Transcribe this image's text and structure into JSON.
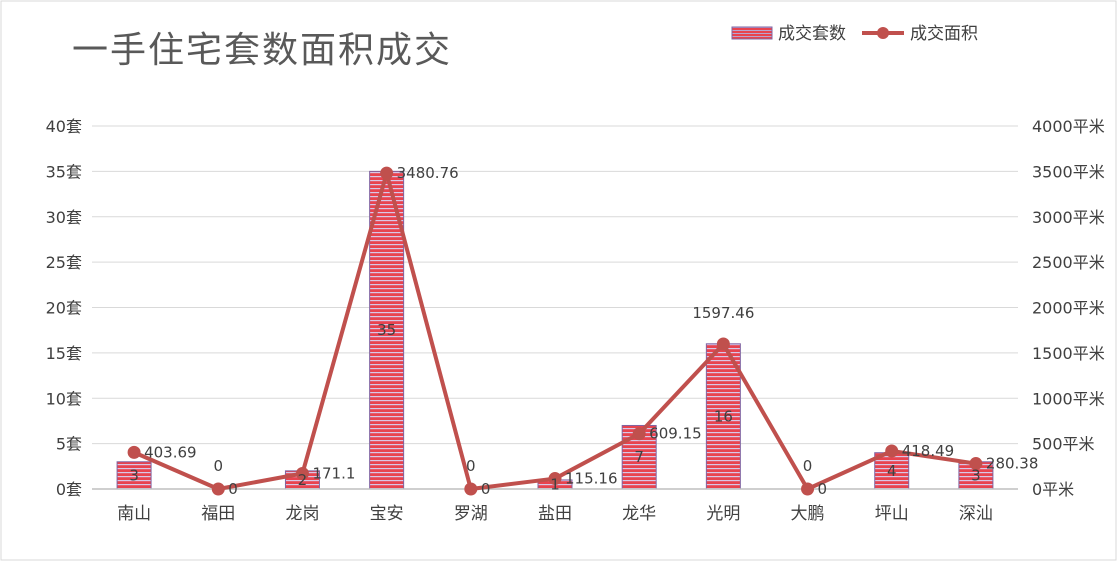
{
  "chart_data": {
    "type": "bar",
    "title": "一手住宅套数面积成交",
    "categories": [
      "南山",
      "福田",
      "龙岗",
      "宝安",
      "罗湖",
      "盐田",
      "龙华",
      "光明",
      "大鹏",
      "坪山",
      "深汕"
    ],
    "series": [
      {
        "name": "成交套数",
        "type": "bar",
        "axis": "left",
        "values": [
          3,
          0,
          2,
          35,
          0,
          1,
          7,
          16,
          0,
          4,
          3
        ],
        "labels": [
          "3",
          "0",
          "2",
          "35",
          "0",
          "1",
          "7",
          "16",
          "0",
          "4",
          "3"
        ]
      },
      {
        "name": "成交面积",
        "type": "line",
        "axis": "right",
        "values": [
          403.69,
          0,
          171.1,
          3480.76,
          0,
          115.16,
          609.15,
          1597.46,
          0,
          418.49,
          280.38
        ],
        "labels": [
          "403.69",
          "0",
          "171.1",
          "3480.76",
          "0",
          "115.16",
          "609.15",
          "1597.46",
          "0",
          "418.49",
          "280.38"
        ]
      }
    ],
    "y_left": {
      "ylim": [
        0,
        40
      ],
      "ticks": [
        0,
        5,
        10,
        15,
        20,
        25,
        30,
        35,
        40
      ],
      "tick_labels": [
        "0套",
        "5套",
        "10套",
        "15套",
        "20套",
        "25套",
        "30套",
        "35套",
        "40套"
      ]
    },
    "y_right": {
      "ylim": [
        0,
        4000
      ],
      "ticks": [
        0,
        500,
        1000,
        1500,
        2000,
        2500,
        3000,
        3500,
        4000
      ],
      "tick_labels": [
        "0平米",
        "500平米",
        "1000平米",
        "1500平米",
        "2000平米",
        "2500平米",
        "3000平米",
        "3500平米",
        "4000平米"
      ]
    },
    "grid": true,
    "legend_position": "top-right",
    "colors": {
      "bar_fill": "#e8434f",
      "bar_stripe": "#c9b8d9",
      "bar_border": "#8064a2",
      "line": "#c0504d",
      "grid": "#d9d9d9",
      "text": "#404040",
      "title": "#595959"
    }
  }
}
